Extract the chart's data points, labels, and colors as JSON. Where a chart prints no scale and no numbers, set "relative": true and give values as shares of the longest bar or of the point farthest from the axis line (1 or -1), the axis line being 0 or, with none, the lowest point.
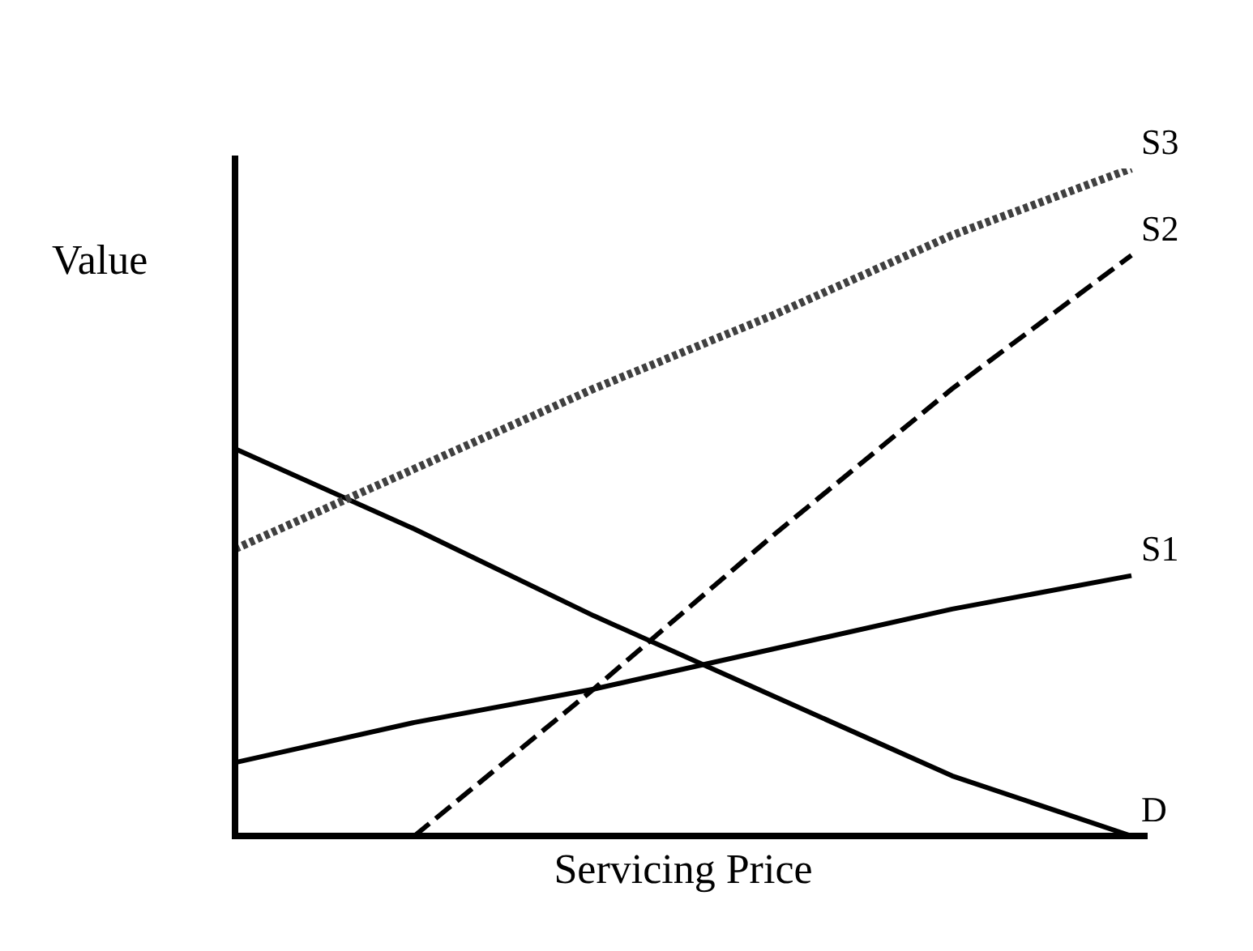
{
  "chart_data": {
    "type": "line",
    "relative": true,
    "xlabel": "Servicing Price",
    "ylabel": "Value",
    "categories": [
      null,
      null,
      null,
      null,
      null,
      null
    ],
    "tick_labels": false,
    "series": [
      {
        "name": "S3",
        "color": "#404040",
        "line_style": "dotted",
        "values": [
          0.43,
          0.55,
          0.67,
          0.78,
          0.9,
          1
        ]
      },
      {
        "name": "S2",
        "color": "#000000",
        "line_style": "dashed",
        "values": [
          null,
          0,
          0.22,
          0.45,
          0.67,
          0.87
        ]
      },
      {
        "name": "S1",
        "color": "#000000",
        "line_style": "solid",
        "values": [
          0.11,
          0.17,
          0.22,
          0.28,
          0.34,
          0.39
        ]
      },
      {
        "name": "D",
        "color": "#000000",
        "line_style": "solid",
        "values": [
          0.58,
          0.46,
          0.33,
          0.21,
          0.09,
          0
        ]
      }
    ]
  }
}
